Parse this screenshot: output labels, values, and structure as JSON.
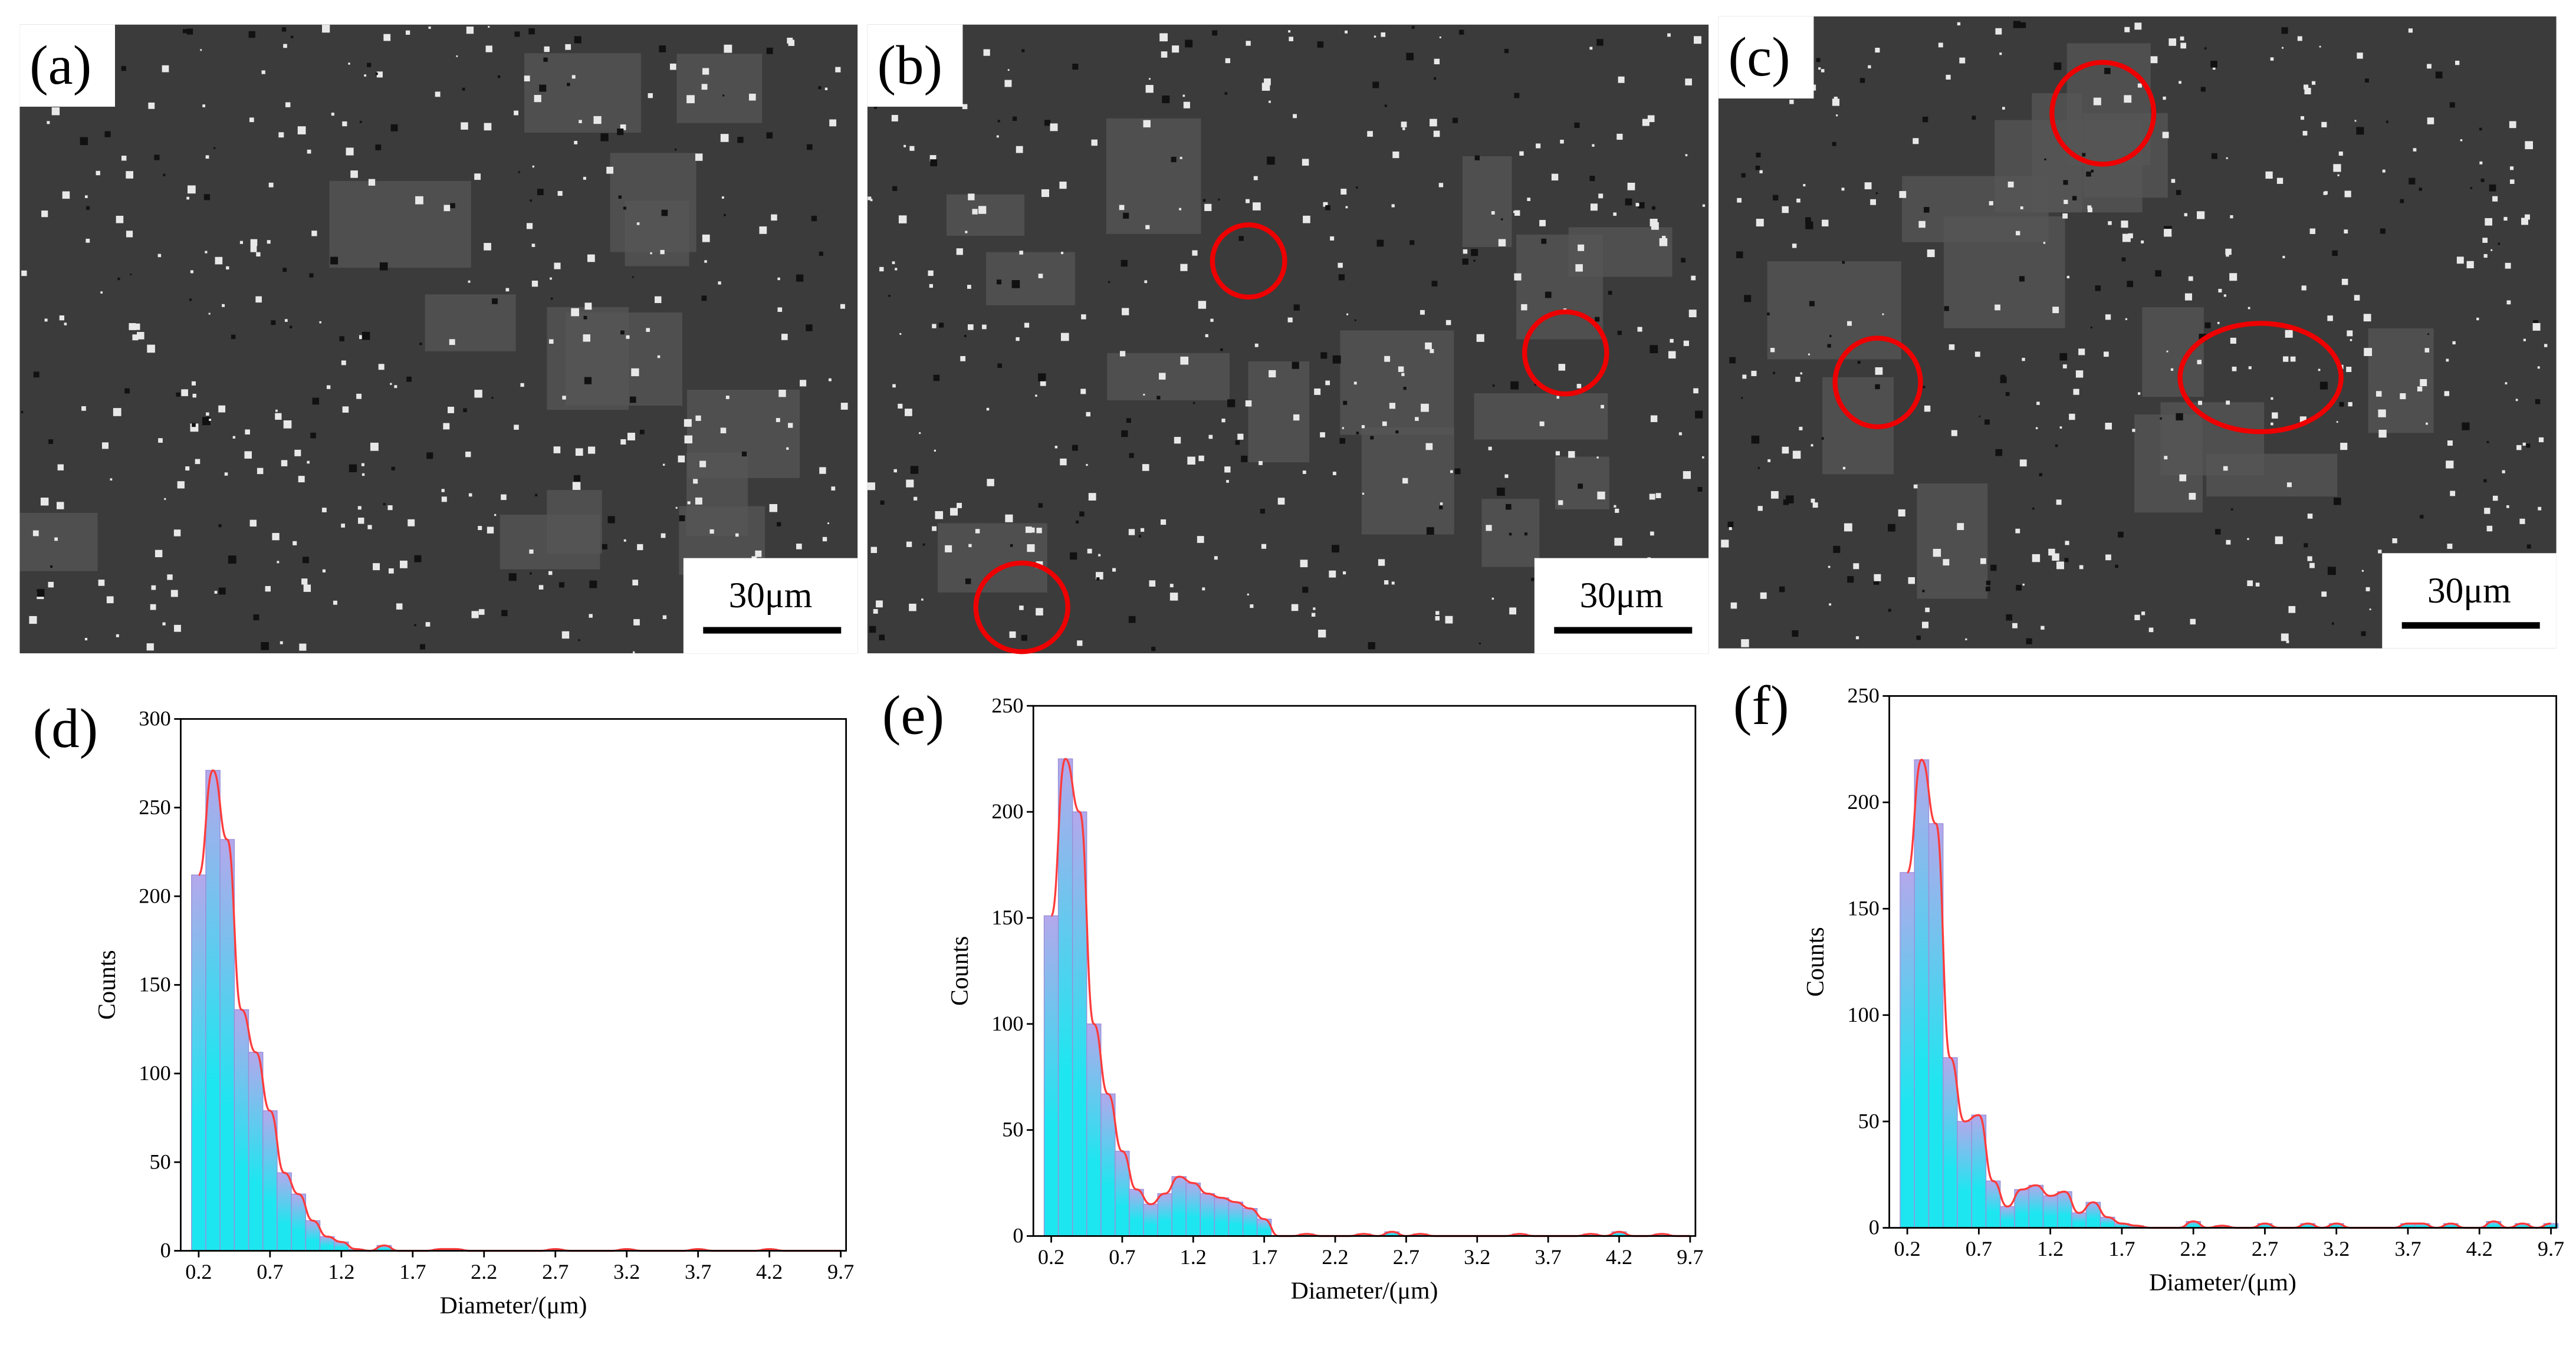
{
  "images": [
    {
      "label": "(a)",
      "scale_bar": "30μm"
    },
    {
      "label": "(b)",
      "scale_bar": "30μm"
    },
    {
      "label": "(c)",
      "scale_bar": "30μm"
    }
  ],
  "chart_data": [
    {
      "type": "histogram",
      "title": "(d)",
      "xlabel": "Diameter/(μm)",
      "ylabel": "Counts",
      "xticks": [
        "0.2",
        "0.7",
        "1.2",
        "1.7",
        "2.2",
        "2.7",
        "3.2",
        "3.7",
        "4.2",
        "9.7"
      ],
      "ylim": [
        0,
        300
      ],
      "yticks": [
        0,
        50,
        100,
        150,
        200,
        250,
        300
      ],
      "color": "#1ee6f0",
      "top_color": "#b4a8ec",
      "line_color": "#ff3b3b",
      "values": [
        212,
        271,
        232,
        136,
        112,
        79,
        44,
        32,
        17,
        8,
        5,
        1,
        0,
        3,
        0,
        0,
        0,
        1,
        1,
        0,
        0,
        0,
        0,
        0,
        0,
        1,
        0,
        0,
        0,
        0,
        1,
        0,
        0,
        0,
        0,
        1,
        0,
        0,
        0,
        0,
        1,
        0,
        0,
        0,
        0,
        0
      ]
    },
    {
      "type": "histogram",
      "title": "(e)",
      "xlabel": "Diameter/(μm)",
      "ylabel": "Counts",
      "xticks": [
        "0.2",
        "0.7",
        "1.2",
        "1.7",
        "2.2",
        "2.7",
        "3.2",
        "3.7",
        "4.2",
        "9.7"
      ],
      "ylim": [
        0,
        250
      ],
      "yticks": [
        0,
        50,
        100,
        150,
        200,
        250
      ],
      "color": "#1ee6f0",
      "top_color": "#b4a8ec",
      "line_color": "#ff3b3b",
      "values": [
        151,
        225,
        200,
        100,
        67,
        40,
        22,
        15,
        20,
        28,
        25,
        20,
        18,
        16,
        13,
        8,
        0,
        0,
        1,
        0,
        0,
        0,
        1,
        0,
        2,
        0,
        1,
        0,
        0,
        0,
        0,
        0,
        0,
        1,
        0,
        0,
        0,
        0,
        1,
        0,
        2,
        0,
        0,
        1,
        0,
        0
      ]
    },
    {
      "type": "histogram",
      "title": "(f)",
      "xlabel": "Diameter/(μm)",
      "ylabel": "Counts",
      "xticks": [
        "0.2",
        "0.7",
        "1.2",
        "1.7",
        "2.2",
        "2.7",
        "3.2",
        "3.7",
        "4.2",
        "9.7"
      ],
      "ylim": [
        0,
        250
      ],
      "yticks": [
        0,
        50,
        100,
        150,
        200,
        250
      ],
      "color": "#1ee6f0",
      "top_color": "#b4a8ec",
      "line_color": "#ff3b3b",
      "values": [
        167,
        220,
        190,
        80,
        50,
        53,
        22,
        10,
        18,
        20,
        15,
        17,
        7,
        12,
        5,
        2,
        1,
        0,
        0,
        0,
        3,
        0,
        1,
        0,
        0,
        2,
        0,
        0,
        2,
        0,
        2,
        0,
        0,
        0,
        0,
        2,
        2,
        0,
        2,
        0,
        0,
        3,
        0,
        2,
        0,
        2
      ]
    }
  ]
}
